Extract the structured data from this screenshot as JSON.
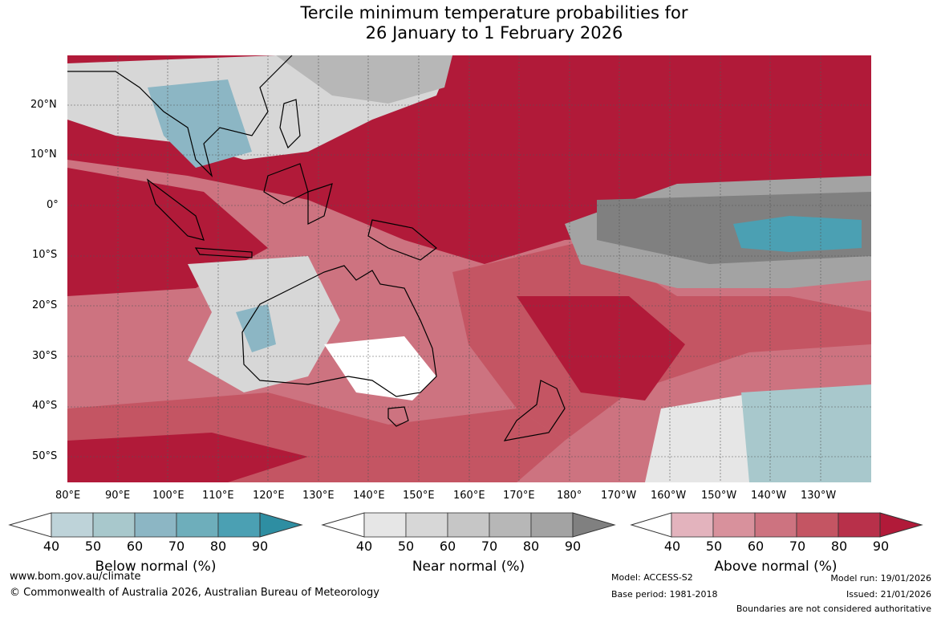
{
  "title": {
    "line1": "Tercile minimum temperature probabilities for",
    "line2": "26 January to 1 February 2026"
  },
  "map": {
    "lat_labels": [
      "20°N",
      "10°N",
      "0°",
      "10°S",
      "20°S",
      "30°S",
      "40°S",
      "50°S"
    ],
    "lon_labels": [
      "80°E",
      "90°E",
      "100°E",
      "110°E",
      "120°E",
      "130°E",
      "140°E",
      "150°E",
      "160°E",
      "170°E",
      "180°",
      "170°W",
      "160°W",
      "150°W",
      "140°W",
      "130°W"
    ],
    "extent": {
      "lon_min": 80,
      "lon_max": 240,
      "lat_min": -55,
      "lat_max": 30
    }
  },
  "legend": {
    "ticks": [
      "40",
      "50",
      "60",
      "70",
      "80",
      "90"
    ],
    "below": {
      "label": "Below normal (%)",
      "colors": [
        "#bed3d9",
        "#a8c8cc",
        "#8cb6c4",
        "#6eaebb",
        "#4ba0b3",
        "#2e8ea2"
      ]
    },
    "near": {
      "label": "Near normal (%)",
      "colors": [
        "#e6e6e6",
        "#d7d7d7",
        "#c6c6c6",
        "#b7b7b7",
        "#a3a3a3",
        "#808080"
      ]
    },
    "above": {
      "label": "Above normal (%)",
      "colors": [
        "#e3b3bd",
        "#d8919c",
        "#cd7380",
        "#c45563",
        "#b8304a",
        "#b11a39"
      ]
    }
  },
  "footer": {
    "website": "www.bom.gov.au/climate",
    "copyright": "© Commonwealth of Australia 2026, Australian Bureau of Meteorology",
    "model": "Model: ACCESS-S2",
    "base_period": "Base period: 1981-2018",
    "model_run": "Model run: 19/01/2026",
    "issued": "Issued: 21/01/2026",
    "disclaimer": "Boundaries are not considered authoritative"
  }
}
